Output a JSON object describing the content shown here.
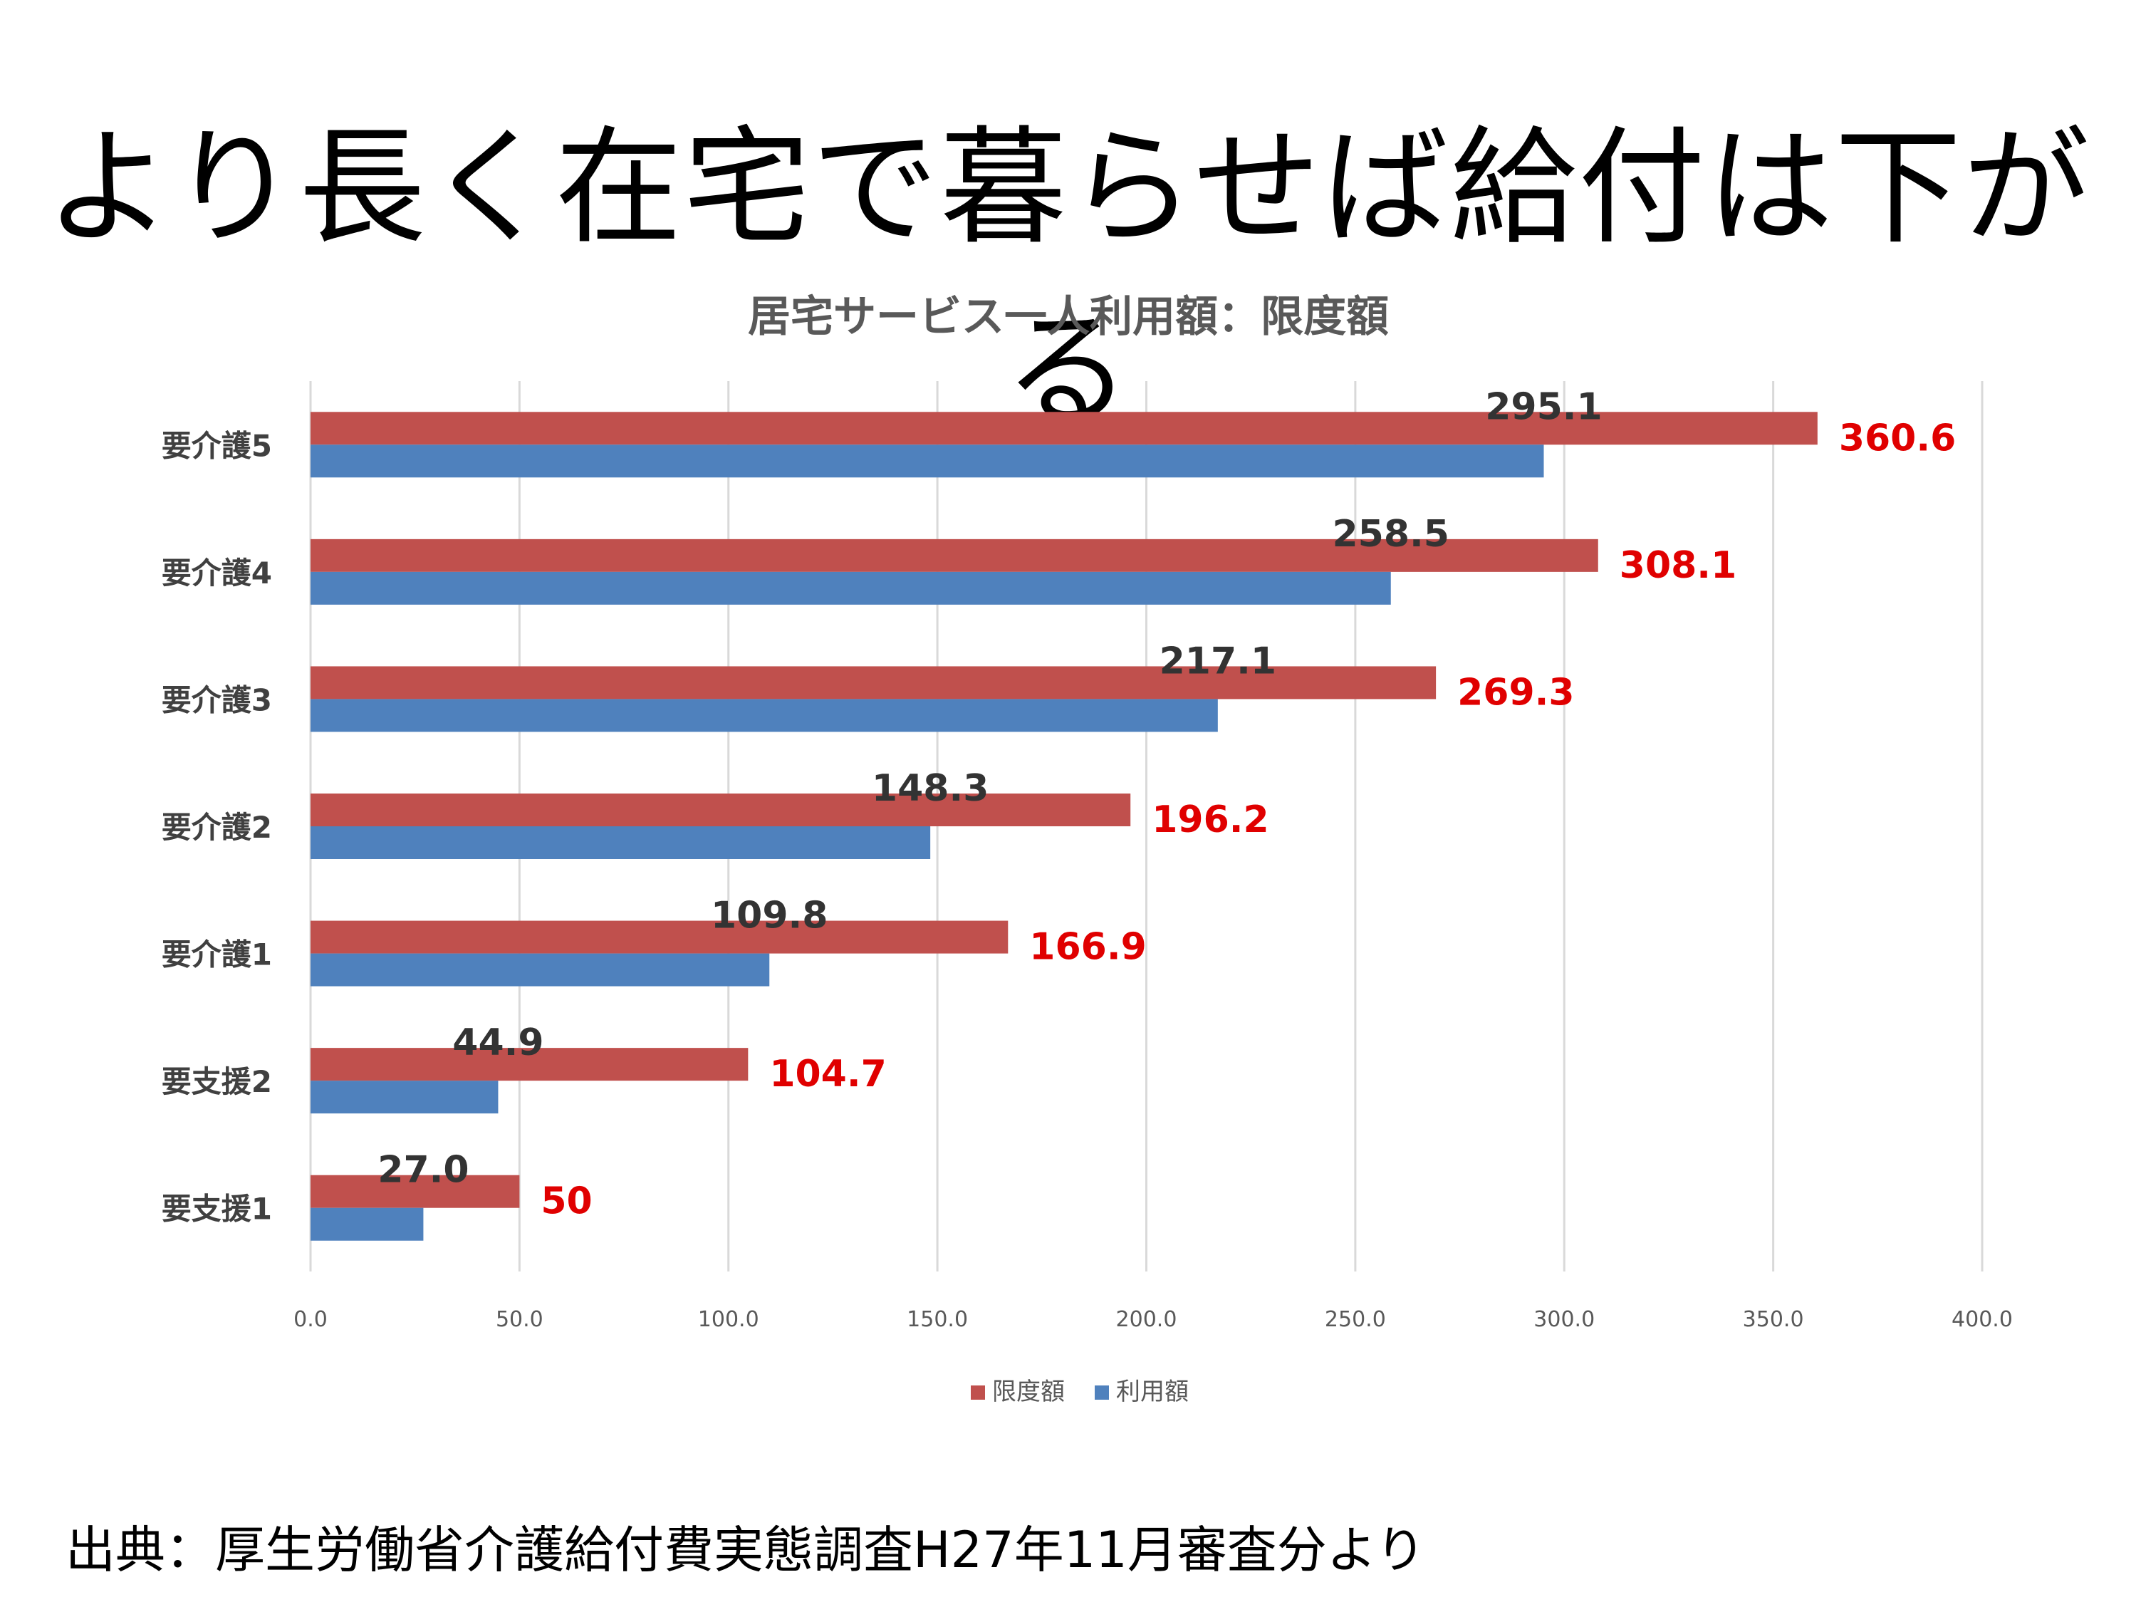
{
  "slide": {
    "title": "より長く在宅で暮らせば給付は下がる",
    "source": "出典：厚生労働省介護給付費実態調査H27年11月審査分より"
  },
  "chart_data": {
    "type": "bar",
    "orientation": "horizontal",
    "title": "居宅サービス一人利用額：限度額",
    "categories": [
      "要介護5",
      "要介護4",
      "要介護3",
      "要介護2",
      "要介護1",
      "要支援2",
      "要支援1"
    ],
    "series": [
      {
        "name": "限度額",
        "color": "#C0504D",
        "label_color": "#E00000",
        "values": [
          360.6,
          308.1,
          269.3,
          196.2,
          166.9,
          104.7,
          50
        ],
        "labels": [
          "360.6",
          "308.1",
          "269.3",
          "196.2",
          "166.9",
          "104.7",
          "50"
        ]
      },
      {
        "name": "利用額",
        "color": "#4F81BD",
        "label_color": "#333333",
        "values": [
          295.1,
          258.5,
          217.1,
          148.3,
          109.8,
          44.9,
          27.0
        ],
        "labels": [
          "295.1",
          "258.5",
          "217.1",
          "148.3",
          "109.8",
          "44.9",
          "27.0"
        ]
      }
    ],
    "xlim": [
      0,
      400
    ],
    "xticks": [
      "0.0",
      "50.0",
      "100.0",
      "150.0",
      "200.0",
      "250.0",
      "300.0",
      "350.0",
      "400.0"
    ],
    "grid": true,
    "legend_position": "bottom"
  }
}
